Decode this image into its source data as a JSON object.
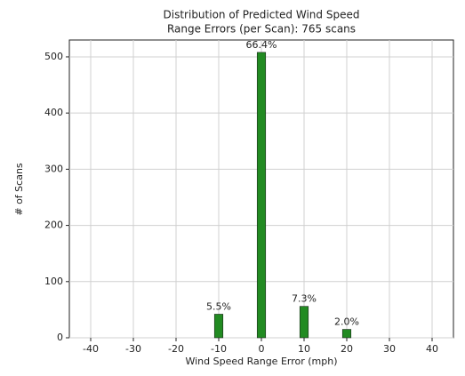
{
  "chart_data": {
    "type": "bar",
    "title": [
      "Distribution of Predicted Wind Speed",
      "Range Errors (per Scan): 765 scans"
    ],
    "x_label": "Wind Speed Range Error (mph)",
    "y_label": "# of Scans",
    "x": [
      -10,
      0,
      10,
      20
    ],
    "values": [
      42,
      508,
      56,
      15
    ],
    "value_labels": [
      "5.5%",
      "66.4%",
      "7.3%",
      "2.0%"
    ],
    "bar_width": 2,
    "color": "#228b22",
    "xlim": [
      -45,
      45
    ],
    "xticks": [
      -40,
      -30,
      -20,
      -10,
      0,
      10,
      20,
      30,
      40
    ],
    "ylim": [
      0,
      530
    ],
    "yticks": [
      0,
      100,
      200,
      300,
      400,
      500
    ],
    "grid": true
  }
}
